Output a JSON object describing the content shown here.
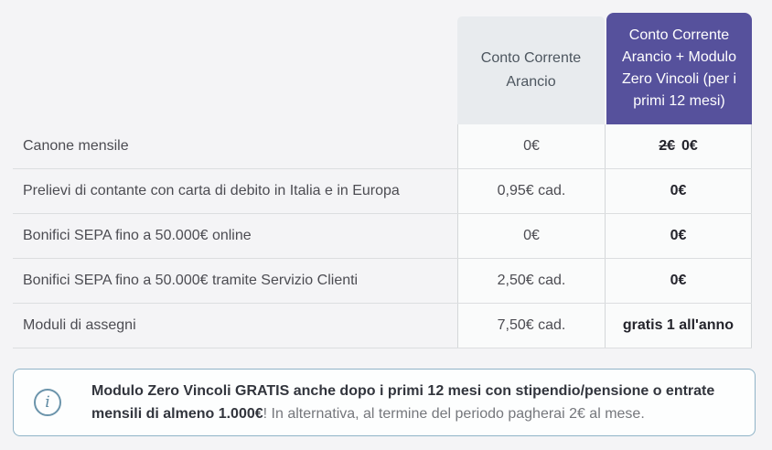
{
  "colors": {
    "accent_purple": "#56519C",
    "header_gray": "#E8EBEE",
    "info_border_blue": "#8FB3C7",
    "info_icon_blue": "#5D89A2",
    "page_background": "#F4F4F6"
  },
  "table": {
    "plan1_header": "Conto Corrente Arancio",
    "plan2_header": "Conto Corrente Arancio + Modulo Zero Vincoli (per i primi 12 mesi)",
    "rows": [
      {
        "label": "Canone mensile",
        "plan1": "0€",
        "plan2_old": "2€",
        "plan2": "0€"
      },
      {
        "label": "Prelievi di contante con carta di debito in Italia e in Europa",
        "plan1": "0,95€ cad.",
        "plan2": "0€"
      },
      {
        "label": "Bonifici SEPA fino a 50.000€ online",
        "plan1": "0€",
        "plan2": "0€"
      },
      {
        "label": "Bonifici SEPA fino a 50.000€ tramite Servizio Clienti",
        "plan1": "2,50€ cad.",
        "plan2": "0€"
      },
      {
        "label": "Moduli di assegni",
        "plan1": "7,50€ cad.",
        "plan2": "gratis 1 all'anno"
      }
    ]
  },
  "info": {
    "icon_glyph": "i",
    "bold_text": "Modulo Zero Vincoli GRATIS anche dopo i primi 12 mesi con stipendio/pensione o entrate mensili di almeno 1.000€",
    "regular_text": "! In alternativa, al termine del periodo pagherai 2€ al mese."
  }
}
